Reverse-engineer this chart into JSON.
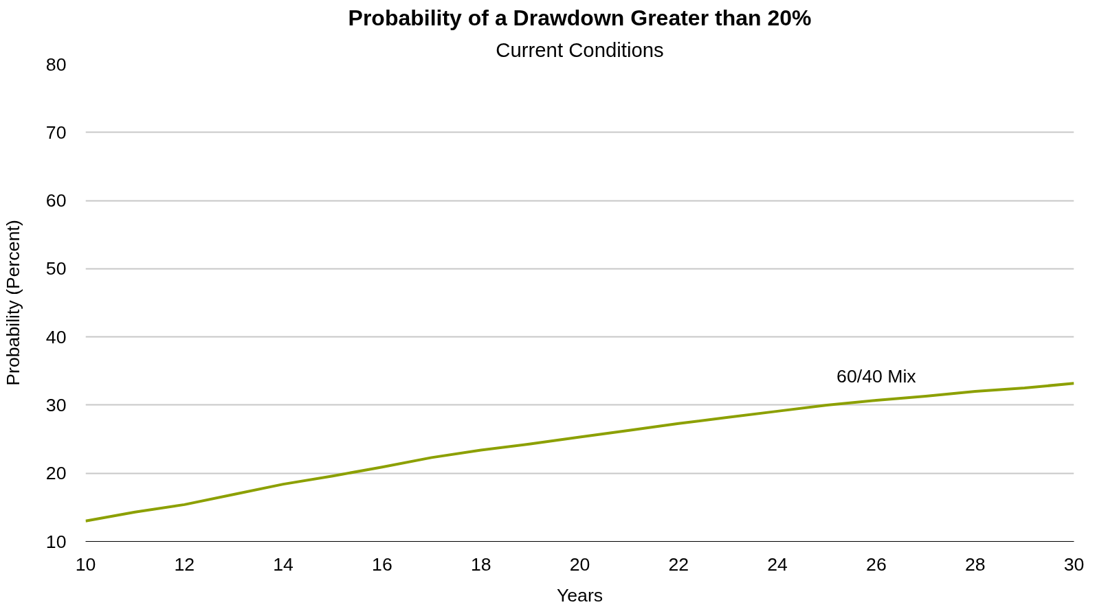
{
  "chart_data": {
    "type": "line",
    "title": "Probability of a Drawdown Greater than 20%",
    "subtitle": "Current Conditions",
    "xlabel": "Years",
    "ylabel": "Probability (Percent)",
    "x": [
      10,
      11,
      12,
      13,
      14,
      15,
      16,
      17,
      18,
      19,
      20,
      21,
      22,
      23,
      24,
      25,
      26,
      27,
      28,
      29,
      30
    ],
    "series": [
      {
        "name": "60/40 Mix",
        "color": "#8ca000",
        "values": [
          13.0,
          14.3,
          15.4,
          16.9,
          18.4,
          19.6,
          20.9,
          22.3,
          23.4,
          24.3,
          25.3,
          26.3,
          27.3,
          28.2,
          29.1,
          30.0,
          30.7,
          31.3,
          32.0,
          32.5,
          33.2
        ]
      }
    ],
    "xlim": [
      10,
      30
    ],
    "ylim": [
      10,
      80
    ],
    "xticks": [
      10,
      12,
      14,
      16,
      18,
      20,
      22,
      24,
      26,
      28,
      30
    ],
    "yticks": [
      10,
      20,
      30,
      40,
      50,
      60,
      70,
      80
    ],
    "grid": "y",
    "marker": "none",
    "line_style": "solid"
  }
}
